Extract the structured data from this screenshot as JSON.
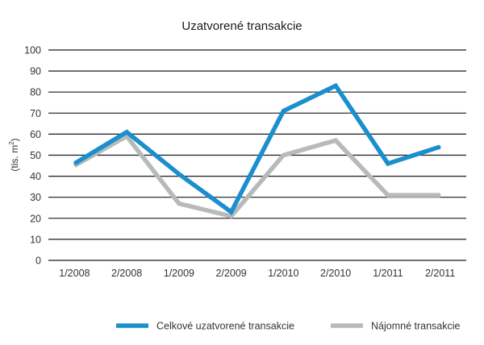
{
  "chart_data": {
    "type": "line",
    "title": "Uzatvorené transakcie",
    "xlabel": "",
    "ylabel": "(tis. m",
    "ylabel_sup": "2",
    "ylabel_close": ")",
    "categories": [
      "1/2008",
      "2/2008",
      "1/2009",
      "2/2009",
      "1/2010",
      "2/2010",
      "1/2011",
      "2/2011"
    ],
    "ylim": [
      0,
      100
    ],
    "yticks": [
      0,
      10,
      20,
      30,
      40,
      50,
      60,
      70,
      80,
      90,
      100
    ],
    "grid": true,
    "legend_position": "bottom-right",
    "series": [
      {
        "name": "Celkové uzatvorené transakcie",
        "color": "#1b8fce",
        "values": [
          46,
          61,
          41,
          23,
          71,
          83,
          46,
          54
        ]
      },
      {
        "name": "Nájomné transakcie",
        "color": "#b8b9bb",
        "values": [
          45,
          59,
          27,
          21,
          50,
          57,
          31,
          31
        ]
      }
    ]
  }
}
